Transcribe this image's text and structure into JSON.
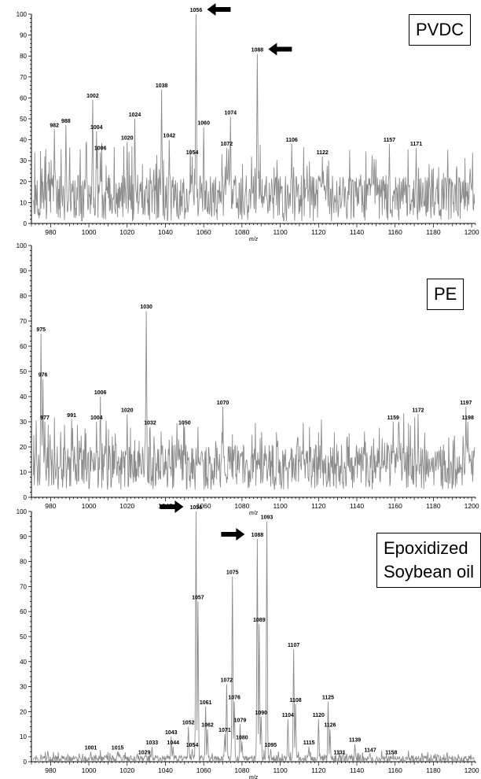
{
  "chart_data": [
    {
      "type": "line",
      "sample_label": [
        "PVDC"
      ],
      "xlabel": "m/z",
      "ylabel": "",
      "xlim": [
        970,
        1202
      ],
      "ylim": [
        0,
        100
      ],
      "x_ticks": [
        "980",
        "1000",
        "1020",
        "1040",
        "1060",
        "1080",
        "1100",
        "1120",
        "1140",
        "1160",
        "1180",
        "1200"
      ],
      "y_ticks": [
        "0",
        "10",
        "20",
        "30",
        "40",
        "50",
        "60",
        "70",
        "80",
        "90",
        "100"
      ],
      "grid": false,
      "color": "#8c8c8c",
      "peaks": [
        {
          "x": 982,
          "y": 45,
          "label": "982"
        },
        {
          "x": 988,
          "y": 47,
          "label": "988"
        },
        {
          "x": 1002,
          "y": 59,
          "label": "1002"
        },
        {
          "x": 1004,
          "y": 44,
          "label": "1004"
        },
        {
          "x": 1006,
          "y": 34,
          "label": "1006"
        },
        {
          "x": 1020,
          "y": 39,
          "label": "1020"
        },
        {
          "x": 1024,
          "y": 50,
          "label": "1024"
        },
        {
          "x": 1038,
          "y": 64,
          "label": "1038"
        },
        {
          "x": 1042,
          "y": 40,
          "label": "1042"
        },
        {
          "x": 1054,
          "y": 32,
          "label": "1054"
        },
        {
          "x": 1056,
          "y": 100,
          "label": "1056",
          "arrow": "right"
        },
        {
          "x": 1060,
          "y": 46,
          "label": "1060"
        },
        {
          "x": 1072,
          "y": 36,
          "label": "1072"
        },
        {
          "x": 1074,
          "y": 51,
          "label": "1074"
        },
        {
          "x": 1088,
          "y": 81,
          "label": "1088",
          "arrow": "right"
        },
        {
          "x": 1106,
          "y": 38,
          "label": "1106"
        },
        {
          "x": 1122,
          "y": 32,
          "label": "1122"
        },
        {
          "x": 1157,
          "y": 38,
          "label": "1157"
        },
        {
          "x": 1171,
          "y": 36,
          "label": "1171"
        }
      ],
      "baseline": 12,
      "noise": 11
    },
    {
      "type": "line",
      "sample_label": [
        "PE"
      ],
      "xlabel": "m/z",
      "ylabel": "",
      "xlim": [
        970,
        1202
      ],
      "ylim": [
        0,
        100
      ],
      "x_ticks": [
        "980",
        "1000",
        "1020",
        "1040",
        "1060",
        "1080",
        "1100",
        "1120",
        "1140",
        "1160",
        "1180",
        "1200"
      ],
      "y_ticks": [
        "0",
        "10",
        "20",
        "30",
        "40",
        "50",
        "60",
        "70",
        "80",
        "90",
        "100"
      ],
      "grid": false,
      "color": "#8c8c8c",
      "peaks": [
        {
          "x": 975,
          "y": 65,
          "label": "975"
        },
        {
          "x": 976,
          "y": 47,
          "label": "976"
        },
        {
          "x": 977,
          "y": 30,
          "label": "977"
        },
        {
          "x": 991,
          "y": 31,
          "label": "991"
        },
        {
          "x": 1004,
          "y": 30,
          "label": "1004"
        },
        {
          "x": 1006,
          "y": 40,
          "label": "1006"
        },
        {
          "x": 1020,
          "y": 33,
          "label": "1020"
        },
        {
          "x": 1030,
          "y": 74,
          "label": "1030"
        },
        {
          "x": 1032,
          "y": 28,
          "label": "1032"
        },
        {
          "x": 1050,
          "y": 28,
          "label": "1050"
        },
        {
          "x": 1070,
          "y": 36,
          "label": "1070"
        },
        {
          "x": 1159,
          "y": 30,
          "label": "1159"
        },
        {
          "x": 1172,
          "y": 33,
          "label": "1172"
        },
        {
          "x": 1197,
          "y": 36,
          "label": "1197"
        },
        {
          "x": 1198,
          "y": 30,
          "label": "1198"
        }
      ],
      "baseline": 12,
      "noise": 9
    },
    {
      "type": "line",
      "sample_label": [
        "Epoxidized",
        "Soybean oil"
      ],
      "xlabel": "m/z",
      "ylabel": "",
      "xlim": [
        970,
        1202
      ],
      "ylim": [
        0,
        100
      ],
      "x_ticks": [
        "980",
        "1000",
        "1020",
        "1040",
        "1060",
        "1080",
        "1100",
        "1120",
        "1140",
        "1160",
        "1180",
        "1200"
      ],
      "y_ticks": [
        "0",
        "10",
        "20",
        "30",
        "40",
        "50",
        "60",
        "70",
        "80",
        "90",
        "100"
      ],
      "grid": false,
      "color": "#8c8c8c",
      "peaks": [
        {
          "x": 1001,
          "y": 4,
          "label": "1001"
        },
        {
          "x": 1015,
          "y": 4,
          "label": "1015"
        },
        {
          "x": 1029,
          "y": 2,
          "label": "1029"
        },
        {
          "x": 1033,
          "y": 6,
          "label": "1033"
        },
        {
          "x": 1043,
          "y": 10,
          "label": "1043"
        },
        {
          "x": 1044,
          "y": 6,
          "label": "1044"
        },
        {
          "x": 1052,
          "y": 14,
          "label": "1052"
        },
        {
          "x": 1054,
          "y": 5,
          "label": "1054"
        },
        {
          "x": 1056,
          "y": 100,
          "label": "1056",
          "arrow": "right"
        },
        {
          "x": 1057,
          "y": 64,
          "label": "1057"
        },
        {
          "x": 1061,
          "y": 22,
          "label": "1061"
        },
        {
          "x": 1062,
          "y": 13,
          "label": "1062"
        },
        {
          "x": 1071,
          "y": 11,
          "label": "1071"
        },
        {
          "x": 1072,
          "y": 31,
          "label": "1072"
        },
        {
          "x": 1075,
          "y": 74,
          "label": "1075"
        },
        {
          "x": 1076,
          "y": 24,
          "label": "1076"
        },
        {
          "x": 1079,
          "y": 15,
          "label": "1079"
        },
        {
          "x": 1080,
          "y": 8,
          "label": "1080"
        },
        {
          "x": 1088,
          "y": 89,
          "label": "1088",
          "arrow": "right"
        },
        {
          "x": 1089,
          "y": 55,
          "label": "1089"
        },
        {
          "x": 1090,
          "y": 18,
          "label": "1090"
        },
        {
          "x": 1093,
          "y": 96,
          "label": "1093"
        },
        {
          "x": 1095,
          "y": 5,
          "label": "1095"
        },
        {
          "x": 1104,
          "y": 17,
          "label": "1104"
        },
        {
          "x": 1107,
          "y": 45,
          "label": "1107"
        },
        {
          "x": 1108,
          "y": 23,
          "label": "1108"
        },
        {
          "x": 1115,
          "y": 6,
          "label": "1115"
        },
        {
          "x": 1120,
          "y": 17,
          "label": "1120"
        },
        {
          "x": 1125,
          "y": 24,
          "label": "1125"
        },
        {
          "x": 1126,
          "y": 13,
          "label": "1126"
        },
        {
          "x": 1131,
          "y": 2,
          "label": "1131"
        },
        {
          "x": 1139,
          "y": 7,
          "label": "1139"
        },
        {
          "x": 1147,
          "y": 3,
          "label": "1147"
        },
        {
          "x": 1158,
          "y": 2,
          "label": "1158"
        }
      ],
      "baseline": 1,
      "noise": 1.5
    }
  ]
}
